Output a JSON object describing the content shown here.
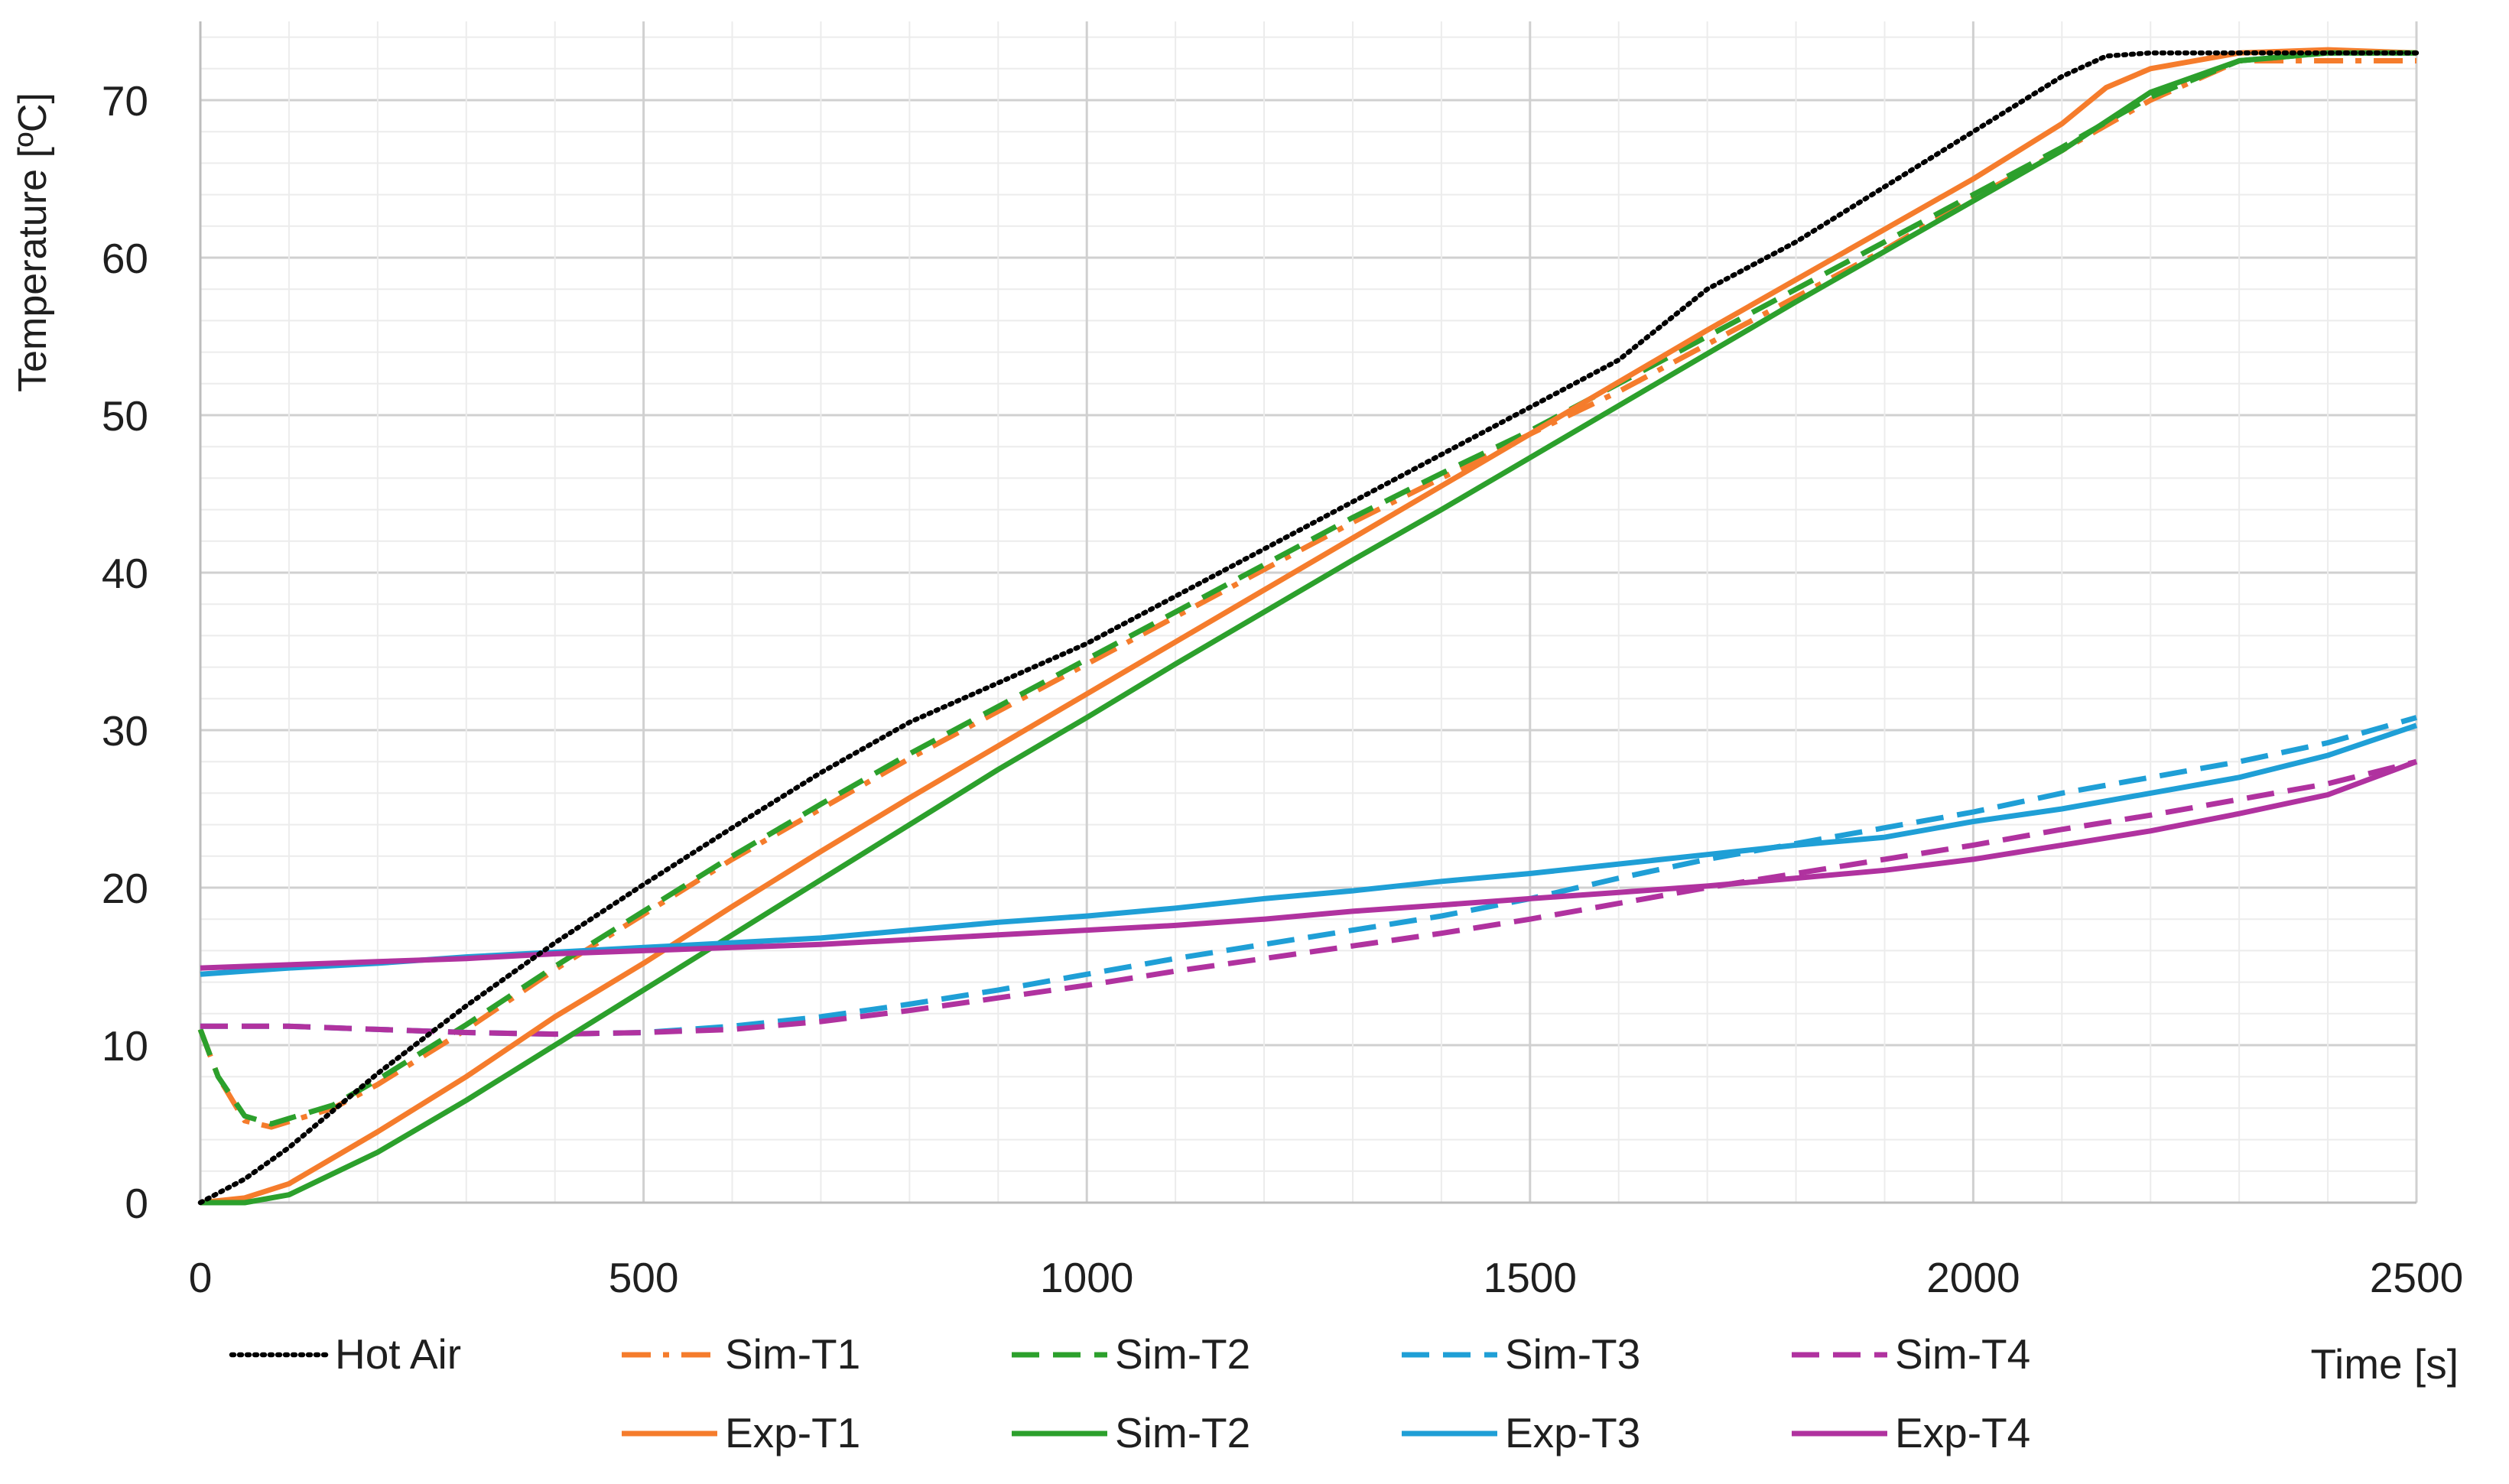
{
  "chart_data": {
    "type": "line",
    "ylabel": "Temperature  [ºC]",
    "xlabel": "Time [s]",
    "xlim": [
      0,
      2500
    ],
    "ylim": [
      0,
      75
    ],
    "x_ticks": [
      0,
      500,
      1000,
      1500,
      2000,
      2500
    ],
    "y_ticks": [
      0,
      10,
      20,
      30,
      40,
      50,
      60,
      70
    ],
    "grid": "major and minor, light gray",
    "legend_position": "bottom",
    "series": [
      {
        "name": "Hot Air",
        "color": "#000000",
        "style": "dotted",
        "points": [
          [
            0,
            0
          ],
          [
            50,
            1.5
          ],
          [
            100,
            3.5
          ],
          [
            200,
            8.2
          ],
          [
            300,
            12.5
          ],
          [
            400,
            16.5
          ],
          [
            500,
            20.2
          ],
          [
            600,
            23.8
          ],
          [
            700,
            27.3
          ],
          [
            800,
            30.5
          ],
          [
            900,
            33
          ],
          [
            1000,
            35.5
          ],
          [
            1100,
            38.5
          ],
          [
            1200,
            41.5
          ],
          [
            1300,
            44.5
          ],
          [
            1400,
            47.5
          ],
          [
            1500,
            50.5
          ],
          [
            1600,
            53.5
          ],
          [
            1700,
            58
          ],
          [
            1800,
            61
          ],
          [
            1900,
            64.5
          ],
          [
            2000,
            68
          ],
          [
            2100,
            71.5
          ],
          [
            2150,
            72.8
          ],
          [
            2200,
            73
          ],
          [
            2300,
            73
          ],
          [
            2400,
            73
          ],
          [
            2500,
            73
          ]
        ]
      },
      {
        "name": "Sim-T1",
        "color": "#f57c2c",
        "style": "dash-dot",
        "points": [
          [
            0,
            11
          ],
          [
            20,
            8
          ],
          [
            50,
            5.2
          ],
          [
            80,
            4.8
          ],
          [
            150,
            6
          ],
          [
            200,
            7.5
          ],
          [
            300,
            11
          ],
          [
            400,
            14.8
          ],
          [
            500,
            18.3
          ],
          [
            600,
            21.8
          ],
          [
            700,
            25
          ],
          [
            800,
            28.2
          ],
          [
            900,
            31.2
          ],
          [
            1000,
            34.2
          ],
          [
            1100,
            37.2
          ],
          [
            1200,
            40.2
          ],
          [
            1300,
            43.2
          ],
          [
            1400,
            46
          ],
          [
            1500,
            48.8
          ],
          [
            1600,
            51.5
          ],
          [
            1700,
            54.5
          ],
          [
            1800,
            57.5
          ],
          [
            1900,
            60.5
          ],
          [
            2000,
            63.8
          ],
          [
            2100,
            66.8
          ],
          [
            2200,
            70
          ],
          [
            2300,
            72.5
          ],
          [
            2400,
            72.5
          ],
          [
            2500,
            72.5
          ]
        ]
      },
      {
        "name": "Sim-T2",
        "color": "#2ca02c",
        "style": "dashed",
        "points": [
          [
            0,
            11
          ],
          [
            20,
            8
          ],
          [
            50,
            5.5
          ],
          [
            80,
            5
          ],
          [
            150,
            6.2
          ],
          [
            200,
            7.8
          ],
          [
            300,
            11.3
          ],
          [
            400,
            15
          ],
          [
            500,
            18.5
          ],
          [
            600,
            22
          ],
          [
            700,
            25.3
          ],
          [
            800,
            28.5
          ],
          [
            900,
            31.5
          ],
          [
            1000,
            34.5
          ],
          [
            1100,
            37.5
          ],
          [
            1200,
            40.5
          ],
          [
            1300,
            43.5
          ],
          [
            1400,
            46.3
          ],
          [
            1500,
            49
          ],
          [
            1600,
            52
          ],
          [
            1700,
            55
          ],
          [
            1800,
            58
          ],
          [
            1900,
            61
          ],
          [
            2000,
            64
          ],
          [
            2100,
            67
          ],
          [
            2200,
            70.2
          ],
          [
            2300,
            72.5
          ],
          [
            2400,
            73
          ],
          [
            2500,
            73
          ]
        ]
      },
      {
        "name": "Sim-T3",
        "color": "#1f9fd6",
        "style": "dashed",
        "points": [
          [
            0,
            11.2
          ],
          [
            100,
            11.2
          ],
          [
            200,
            11
          ],
          [
            300,
            10.8
          ],
          [
            400,
            10.7
          ],
          [
            500,
            10.8
          ],
          [
            600,
            11.2
          ],
          [
            700,
            11.8
          ],
          [
            800,
            12.6
          ],
          [
            900,
            13.5
          ],
          [
            1000,
            14.5
          ],
          [
            1100,
            15.5
          ],
          [
            1200,
            16.4
          ],
          [
            1300,
            17.3
          ],
          [
            1400,
            18.2
          ],
          [
            1500,
            19.3
          ],
          [
            1600,
            20.6
          ],
          [
            1700,
            21.8
          ],
          [
            1800,
            22.8
          ],
          [
            1900,
            23.8
          ],
          [
            2000,
            24.8
          ],
          [
            2100,
            26
          ],
          [
            2200,
            27
          ],
          [
            2300,
            28
          ],
          [
            2400,
            29.2
          ],
          [
            2500,
            30.8
          ]
        ]
      },
      {
        "name": "Sim-T4",
        "color": "#b0329f",
        "style": "dashed",
        "points": [
          [
            0,
            11.2
          ],
          [
            100,
            11.2
          ],
          [
            200,
            11
          ],
          [
            300,
            10.8
          ],
          [
            400,
            10.7
          ],
          [
            500,
            10.8
          ],
          [
            600,
            11
          ],
          [
            700,
            11.5
          ],
          [
            800,
            12.2
          ],
          [
            900,
            13
          ],
          [
            1000,
            13.8
          ],
          [
            1100,
            14.7
          ],
          [
            1200,
            15.5
          ],
          [
            1300,
            16.3
          ],
          [
            1400,
            17.1
          ],
          [
            1500,
            18
          ],
          [
            1600,
            19
          ],
          [
            1700,
            20
          ],
          [
            1800,
            20.9
          ],
          [
            1900,
            21.8
          ],
          [
            2000,
            22.7
          ],
          [
            2100,
            23.7
          ],
          [
            2200,
            24.6
          ],
          [
            2300,
            25.6
          ],
          [
            2400,
            26.6
          ],
          [
            2500,
            28
          ]
        ]
      },
      {
        "name": "Exp-T1",
        "color": "#f57c2c",
        "style": "solid",
        "points": [
          [
            0,
            0
          ],
          [
            50,
            0.3
          ],
          [
            100,
            1.2
          ],
          [
            200,
            4.5
          ],
          [
            300,
            8
          ],
          [
            400,
            11.8
          ],
          [
            500,
            15.2
          ],
          [
            600,
            18.8
          ],
          [
            700,
            22.3
          ],
          [
            800,
            25.7
          ],
          [
            900,
            29
          ],
          [
            1000,
            32.3
          ],
          [
            1100,
            35.6
          ],
          [
            1200,
            38.9
          ],
          [
            1300,
            42.2
          ],
          [
            1400,
            45.5
          ],
          [
            1500,
            48.8
          ],
          [
            1600,
            52.1
          ],
          [
            1700,
            55.4
          ],
          [
            1800,
            58.6
          ],
          [
            1900,
            61.8
          ],
          [
            2000,
            65
          ],
          [
            2100,
            68.5
          ],
          [
            2150,
            70.8
          ],
          [
            2200,
            72
          ],
          [
            2300,
            73
          ],
          [
            2400,
            73.2
          ],
          [
            2500,
            73
          ]
        ]
      },
      {
        "name": "Sim-T2",
        "color": "#2ca02c",
        "style": "solid",
        "points": [
          [
            0,
            0
          ],
          [
            50,
            0
          ],
          [
            100,
            0.5
          ],
          [
            200,
            3.2
          ],
          [
            300,
            6.5
          ],
          [
            400,
            10
          ],
          [
            500,
            13.5
          ],
          [
            600,
            17
          ],
          [
            700,
            20.5
          ],
          [
            800,
            24
          ],
          [
            900,
            27.5
          ],
          [
            1000,
            30.8
          ],
          [
            1100,
            34.2
          ],
          [
            1200,
            37.5
          ],
          [
            1300,
            40.8
          ],
          [
            1400,
            44
          ],
          [
            1500,
            47.3
          ],
          [
            1600,
            50.6
          ],
          [
            1700,
            53.9
          ],
          [
            1800,
            57.2
          ],
          [
            1900,
            60.4
          ],
          [
            2000,
            63.6
          ],
          [
            2100,
            66.8
          ],
          [
            2200,
            70.5
          ],
          [
            2300,
            72.5
          ],
          [
            2400,
            73
          ],
          [
            2500,
            73
          ]
        ]
      },
      {
        "name": "Exp-T3",
        "color": "#1f9fd6",
        "style": "solid",
        "points": [
          [
            0,
            14.5
          ],
          [
            100,
            14.9
          ],
          [
            200,
            15.2
          ],
          [
            300,
            15.6
          ],
          [
            400,
            15.9
          ],
          [
            500,
            16.2
          ],
          [
            600,
            16.5
          ],
          [
            700,
            16.8
          ],
          [
            800,
            17.3
          ],
          [
            900,
            17.8
          ],
          [
            1000,
            18.2
          ],
          [
            1100,
            18.7
          ],
          [
            1200,
            19.3
          ],
          [
            1300,
            19.8
          ],
          [
            1400,
            20.4
          ],
          [
            1500,
            20.9
          ],
          [
            1600,
            21.5
          ],
          [
            1700,
            22.1
          ],
          [
            1800,
            22.7
          ],
          [
            1900,
            23.2
          ],
          [
            2000,
            24.2
          ],
          [
            2100,
            25
          ],
          [
            2200,
            26
          ],
          [
            2300,
            27
          ],
          [
            2400,
            28.4
          ],
          [
            2500,
            30.3
          ]
        ]
      },
      {
        "name": "Exp-T4",
        "color": "#b0329f",
        "style": "solid",
        "points": [
          [
            0,
            14.9
          ],
          [
            100,
            15.1
          ],
          [
            200,
            15.3
          ],
          [
            300,
            15.5
          ],
          [
            400,
            15.8
          ],
          [
            500,
            16
          ],
          [
            600,
            16.2
          ],
          [
            700,
            16.4
          ],
          [
            800,
            16.7
          ],
          [
            900,
            17
          ],
          [
            1000,
            17.3
          ],
          [
            1100,
            17.6
          ],
          [
            1200,
            18
          ],
          [
            1300,
            18.5
          ],
          [
            1400,
            18.9
          ],
          [
            1500,
            19.3
          ],
          [
            1600,
            19.7
          ],
          [
            1700,
            20.1
          ],
          [
            1800,
            20.6
          ],
          [
            1900,
            21.1
          ],
          [
            2000,
            21.8
          ],
          [
            2100,
            22.7
          ],
          [
            2200,
            23.6
          ],
          [
            2300,
            24.7
          ],
          [
            2400,
            25.9
          ],
          [
            2500,
            28
          ]
        ]
      }
    ]
  }
}
